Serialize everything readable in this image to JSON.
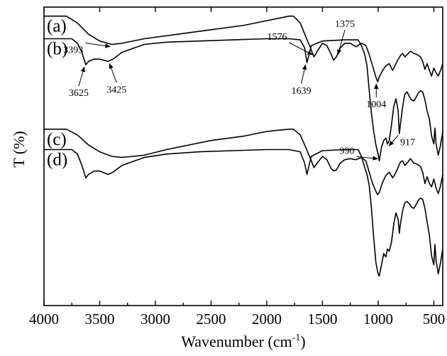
{
  "chart_data": {
    "type": "line",
    "xlabel": "Wavenumber (cm",
    "xlabel_sup": "-1",
    "xlabel_close": ")",
    "ylabel": "T (%)",
    "xlim": [
      4000,
      420
    ],
    "x_reversed": true,
    "x_ticks": [
      4000,
      3500,
      3000,
      2500,
      2000,
      1500,
      1000,
      500
    ],
    "y_ticks_labeled": false,
    "grid": false,
    "legend": "none",
    "series": [
      {
        "name": "(a)",
        "points": [
          [
            4000,
            88
          ],
          [
            3800,
            88
          ],
          [
            3700,
            85
          ],
          [
            3600,
            80
          ],
          [
            3500,
            77
          ],
          [
            3393,
            75.5
          ],
          [
            3300,
            76
          ],
          [
            3100,
            78
          ],
          [
            2800,
            80
          ],
          [
            2500,
            82
          ],
          [
            2200,
            84
          ],
          [
            2000,
            86
          ],
          [
            1800,
            88
          ],
          [
            1760,
            88
          ],
          [
            1700,
            85
          ],
          [
            1650,
            79
          ],
          [
            1600,
            73
          ],
          [
            1576,
            70
          ],
          [
            1540,
            73
          ],
          [
            1500,
            76
          ],
          [
            1460,
            75
          ],
          [
            1420,
            71
          ],
          [
            1400,
            68.5
          ],
          [
            1375,
            70
          ],
          [
            1340,
            74
          ],
          [
            1300,
            76
          ],
          [
            1250,
            76
          ],
          [
            1200,
            74.5
          ],
          [
            1150,
            76
          ],
          [
            1110,
            75
          ],
          [
            1080,
            71
          ],
          [
            1050,
            66
          ],
          [
            1020,
            61
          ],
          [
            1004,
            59
          ],
          [
            990,
            61
          ],
          [
            960,
            64
          ],
          [
            930,
            66
          ],
          [
            900,
            67
          ],
          [
            870,
            64
          ],
          [
            850,
            66
          ],
          [
            830,
            68
          ],
          [
            800,
            70.5
          ],
          [
            780,
            71.5
          ],
          [
            760,
            70
          ],
          [
            740,
            71
          ],
          [
            710,
            72.5
          ],
          [
            680,
            71.5
          ],
          [
            650,
            71
          ],
          [
            620,
            70
          ],
          [
            600,
            68
          ],
          [
            580,
            64.5
          ],
          [
            560,
            67
          ],
          [
            540,
            64
          ],
          [
            520,
            61.5
          ],
          [
            500,
            65
          ],
          [
            480,
            63
          ],
          [
            460,
            61.5
          ],
          [
            440,
            64
          ],
          [
            420,
            67
          ]
        ]
      },
      {
        "name": "(b)",
        "points": [
          [
            4000,
            78
          ],
          [
            3750,
            78
          ],
          [
            3700,
            76
          ],
          [
            3660,
            72
          ],
          [
            3625,
            66.5
          ],
          [
            3600,
            68
          ],
          [
            3550,
            69
          ],
          [
            3500,
            69
          ],
          [
            3425,
            68
          ],
          [
            3380,
            69
          ],
          [
            3300,
            72
          ],
          [
            3100,
            75.5
          ],
          [
            2900,
            76.5
          ],
          [
            2600,
            77
          ],
          [
            2300,
            77.5
          ],
          [
            2000,
            78
          ],
          [
            1800,
            78
          ],
          [
            1700,
            77.5
          ],
          [
            1660,
            74
          ],
          [
            1639,
            67.5
          ],
          [
            1620,
            71
          ],
          [
            1600,
            75
          ],
          [
            1500,
            77
          ],
          [
            1300,
            77.5
          ],
          [
            1180,
            77.5
          ],
          [
            1150,
            75
          ],
          [
            1120,
            71
          ],
          [
            1100,
            66
          ],
          [
            1080,
            55
          ],
          [
            1060,
            45
          ],
          [
            1040,
            37
          ],
          [
            1020,
            31
          ],
          [
            1000,
            27
          ],
          [
            990,
            24
          ],
          [
            970,
            30
          ],
          [
            950,
            33
          ],
          [
            930,
            34
          ],
          [
            917,
            31.5
          ],
          [
            900,
            33
          ],
          [
            880,
            40
          ],
          [
            860,
            48
          ],
          [
            840,
            51.5
          ],
          [
            820,
            46
          ],
          [
            810,
            36
          ],
          [
            800,
            40
          ],
          [
            780,
            48
          ],
          [
            760,
            53.5
          ],
          [
            740,
            54.5
          ],
          [
            720,
            52.5
          ],
          [
            700,
            51
          ],
          [
            680,
            50.5
          ],
          [
            660,
            52
          ],
          [
            640,
            54
          ],
          [
            620,
            55
          ],
          [
            600,
            54.5
          ],
          [
            580,
            51
          ],
          [
            560,
            46
          ],
          [
            540,
            42.5
          ],
          [
            520,
            35
          ],
          [
            500,
            31.5
          ],
          [
            490,
            38.5
          ],
          [
            480,
            31.5
          ],
          [
            460,
            26.5
          ],
          [
            440,
            31
          ],
          [
            420,
            37
          ]
        ]
      },
      {
        "name": "(c)",
        "points": [
          [
            4000,
            38
          ],
          [
            3800,
            38
          ],
          [
            3700,
            35.5
          ],
          [
            3600,
            31
          ],
          [
            3500,
            28
          ],
          [
            3393,
            26
          ],
          [
            3300,
            25.5
          ],
          [
            3200,
            26
          ],
          [
            3100,
            26.5
          ],
          [
            2900,
            29
          ],
          [
            2700,
            31
          ],
          [
            2500,
            33
          ],
          [
            2200,
            35
          ],
          [
            2000,
            37
          ],
          [
            1800,
            38
          ],
          [
            1760,
            38
          ],
          [
            1700,
            35.5
          ],
          [
            1650,
            30
          ],
          [
            1600,
            24
          ],
          [
            1576,
            21
          ],
          [
            1540,
            23.5
          ],
          [
            1500,
            26
          ],
          [
            1460,
            24.5
          ],
          [
            1420,
            20.5
          ],
          [
            1400,
            19.5
          ],
          [
            1375,
            20
          ],
          [
            1340,
            23
          ],
          [
            1300,
            24.5
          ],
          [
            1250,
            25
          ],
          [
            1200,
            24.5
          ],
          [
            1150,
            25.5
          ],
          [
            1110,
            24
          ],
          [
            1080,
            19
          ],
          [
            1050,
            14
          ],
          [
            1020,
            10.5
          ],
          [
            1004,
            9
          ],
          [
            990,
            10
          ],
          [
            960,
            14.5
          ],
          [
            930,
            17.5
          ],
          [
            900,
            19
          ],
          [
            870,
            16.5
          ],
          [
            850,
            18
          ],
          [
            830,
            20
          ],
          [
            800,
            23.5
          ],
          [
            780,
            24
          ],
          [
            760,
            22
          ],
          [
            740,
            23
          ],
          [
            710,
            25
          ],
          [
            680,
            23
          ],
          [
            650,
            22.5
          ],
          [
            620,
            21.5
          ],
          [
            600,
            19
          ],
          [
            580,
            14
          ],
          [
            560,
            17
          ],
          [
            540,
            14
          ],
          [
            520,
            12.5
          ],
          [
            500,
            16
          ],
          [
            480,
            12
          ],
          [
            460,
            9.5
          ],
          [
            440,
            13
          ],
          [
            420,
            18
          ]
        ]
      },
      {
        "name": "(d)",
        "points": [
          [
            4000,
            29
          ],
          [
            3750,
            29
          ],
          [
            3700,
            27
          ],
          [
            3660,
            22
          ],
          [
            3625,
            16.5
          ],
          [
            3600,
            18
          ],
          [
            3550,
            19.5
          ],
          [
            3500,
            19.5
          ],
          [
            3425,
            18
          ],
          [
            3380,
            19
          ],
          [
            3300,
            22
          ],
          [
            3100,
            25.5
          ],
          [
            2900,
            27
          ],
          [
            2600,
            28
          ],
          [
            2300,
            28.5
          ],
          [
            2000,
            29
          ],
          [
            1800,
            29
          ],
          [
            1700,
            28
          ],
          [
            1660,
            23
          ],
          [
            1639,
            18
          ],
          [
            1620,
            22
          ],
          [
            1600,
            26
          ],
          [
            1500,
            28.5
          ],
          [
            1300,
            29
          ],
          [
            1180,
            29
          ],
          [
            1150,
            26
          ],
          [
            1120,
            21
          ],
          [
            1100,
            18
          ],
          [
            1080,
            13
          ],
          [
            1060,
            3
          ],
          [
            1040,
            -10
          ],
          [
            1020,
            -21
          ],
          [
            1000,
            -26
          ],
          [
            990,
            -27
          ],
          [
            970,
            -22
          ],
          [
            950,
            -17
          ],
          [
            930,
            -18.5
          ],
          [
            917,
            -15
          ],
          [
            900,
            -16
          ],
          [
            880,
            -12
          ],
          [
            860,
            -4
          ],
          [
            840,
            1
          ],
          [
            820,
            -2
          ],
          [
            810,
            -8
          ],
          [
            800,
            -4
          ],
          [
            780,
            2
          ],
          [
            760,
            5.5
          ],
          [
            740,
            6
          ],
          [
            720,
            5
          ],
          [
            700,
            3.5
          ],
          [
            680,
            3
          ],
          [
            660,
            4.5
          ],
          [
            640,
            6.5
          ],
          [
            620,
            7.5
          ],
          [
            600,
            7
          ],
          [
            580,
            3
          ],
          [
            560,
            -3
          ],
          [
            540,
            -9
          ],
          [
            520,
            -18
          ],
          [
            500,
            -22
          ],
          [
            490,
            -13
          ],
          [
            480,
            -20
          ],
          [
            460,
            -26
          ],
          [
            440,
            -21
          ],
          [
            420,
            -15
          ]
        ]
      }
    ],
    "annotations": [
      {
        "label": "3393",
        "series": "(a)",
        "x": 3393
      },
      {
        "label": "1576",
        "series": "(a)",
        "x": 1576
      },
      {
        "label": "1375",
        "series": "(a)",
        "x": 1375
      },
      {
        "label": "1004",
        "series": "(a)",
        "x": 1004
      },
      {
        "label": "3625",
        "series": "(b)",
        "x": 3625
      },
      {
        "label": "3425",
        "series": "(b)",
        "x": 3425
      },
      {
        "label": "1639",
        "series": "(b)",
        "x": 1639
      },
      {
        "label": "990",
        "series": "(b)",
        "x": 990
      },
      {
        "label": "917",
        "series": "(b)",
        "x": 917
      }
    ]
  }
}
